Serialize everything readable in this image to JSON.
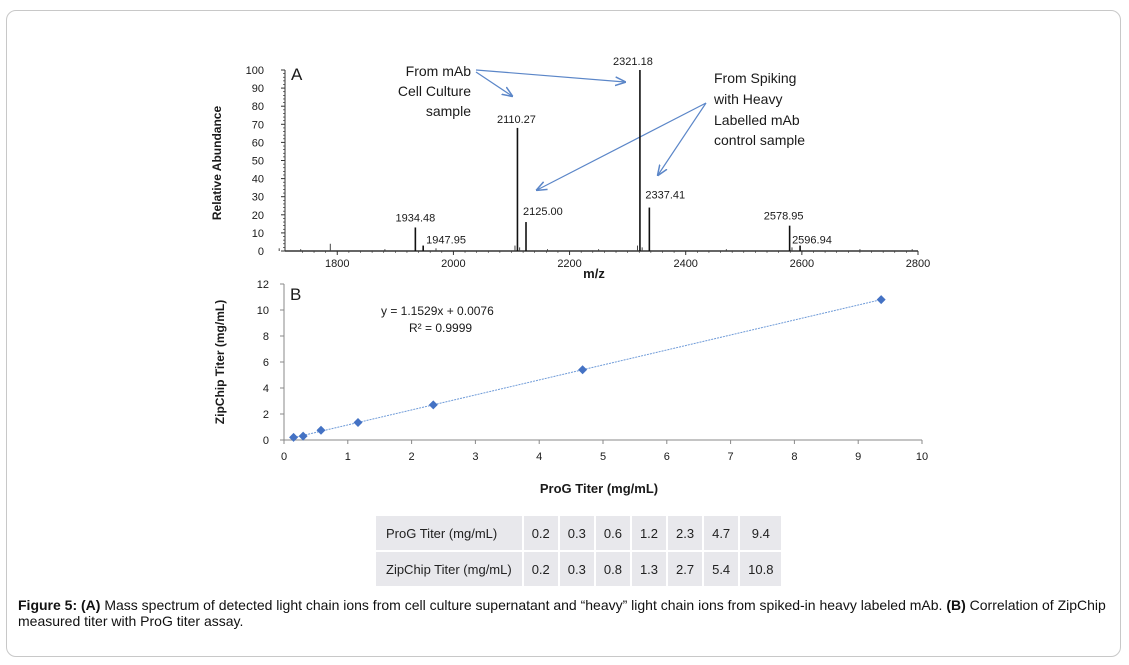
{
  "caption": {
    "label": "Figure 5:",
    "a_tag": "(A)",
    "a_text": "Mass spectrum of detected light chain ions from cell culture supernatant and “heavy” light chain ions from spiked-in heavy labeled mAb.",
    "b_tag": "(B)",
    "b_text": "Correlation of ZipChip measured titer with ProG titer assay."
  },
  "chart_data": [
    {
      "id": "A",
      "type": "mass-spectrum",
      "panel_label": "A",
      "xlabel": "m/z",
      "ylabel": "Relative Abundance",
      "xlim": [
        1700,
        2800
      ],
      "ylim": [
        0,
        100
      ],
      "xticks": [
        1800,
        2000,
        2200,
        2400,
        2600,
        2800
      ],
      "yticks": [
        0,
        10,
        20,
        30,
        40,
        50,
        60,
        70,
        80,
        90,
        100
      ],
      "peaks": [
        {
          "mz": 1934.48,
          "intensity": 13,
          "label": "1934.48"
        },
        {
          "mz": 1947.95,
          "intensity": 3,
          "label": "1947.95"
        },
        {
          "mz": 2110.27,
          "intensity": 68,
          "label": "2110.27"
        },
        {
          "mz": 2125.0,
          "intensity": 16,
          "label": "2125.00"
        },
        {
          "mz": 2321.18,
          "intensity": 100,
          "label": "2321.18"
        },
        {
          "mz": 2337.41,
          "intensity": 24,
          "label": "2337.41"
        },
        {
          "mz": 2578.95,
          "intensity": 14,
          "label": "2578.95"
        },
        {
          "mz": 2596.94,
          "intensity": 3,
          "label": "2596.94"
        }
      ],
      "minor_peaks": [
        {
          "mz": 1700,
          "intensity": 1.5
        },
        {
          "mz": 1737,
          "intensity": 1
        },
        {
          "mz": 1788,
          "intensity": 4
        },
        {
          "mz": 1882,
          "intensity": 1
        },
        {
          "mz": 1970,
          "intensity": 1.5
        },
        {
          "mz": 2106,
          "intensity": 3
        },
        {
          "mz": 2114,
          "intensity": 2
        },
        {
          "mz": 2162,
          "intensity": 1
        },
        {
          "mz": 2250,
          "intensity": 1
        },
        {
          "mz": 2317,
          "intensity": 3
        },
        {
          "mz": 2325,
          "intensity": 2
        },
        {
          "mz": 2470,
          "intensity": 1
        },
        {
          "mz": 2583,
          "intensity": 2
        },
        {
          "mz": 2700,
          "intensity": 1
        },
        {
          "mz": 2790,
          "intensity": 1
        }
      ],
      "annotations": [
        {
          "lines": [
            "From mAb",
            "Cell Culture",
            "sample"
          ],
          "align": "right"
        },
        {
          "lines": [
            "From Spiking",
            "with Heavy",
            "Labelled mAb",
            "control sample"
          ],
          "align": "left"
        }
      ]
    },
    {
      "id": "B",
      "type": "scatter",
      "panel_label": "B",
      "xlabel": "ProG Titer (mg/mL)",
      "ylabel": "ZipChip Titer (mg/mL)",
      "xlim": [
        0,
        10
      ],
      "ylim": [
        0,
        12
      ],
      "xticks": [
        0,
        1,
        2,
        3,
        4,
        5,
        6,
        7,
        8,
        9,
        10
      ],
      "yticks": [
        0,
        2,
        4,
        6,
        8,
        10,
        12
      ],
      "points": [
        {
          "x": 0.15,
          "y": 0.2
        },
        {
          "x": 0.3,
          "y": 0.3
        },
        {
          "x": 0.58,
          "y": 0.75
        },
        {
          "x": 1.16,
          "y": 1.35
        },
        {
          "x": 2.34,
          "y": 2.7
        },
        {
          "x": 4.68,
          "y": 5.4
        },
        {
          "x": 9.36,
          "y": 10.8
        }
      ],
      "trendline": {
        "slope": 1.1529,
        "intercept": 0.0076
      },
      "equation": "y = 1.1529x + 0.0076",
      "r2_label": "R² = 0.9999",
      "marker_color": "#4472c4",
      "line_color": "#6f9bd8"
    }
  ],
  "table": {
    "rows": [
      {
        "label": "ProG Titer (mg/mL)",
        "values": [
          "0.2",
          "0.3",
          "0.6",
          "1.2",
          "2.3",
          "4.7",
          "9.4"
        ]
      },
      {
        "label": "ZipChip Titer (mg/mL)",
        "values": [
          "0.2",
          "0.3",
          "0.8",
          "1.3",
          "2.7",
          "5.4",
          "10.8"
        ]
      }
    ]
  },
  "colors": {
    "arrow": "#5b86c8",
    "axis": "#333333",
    "grid": "#d9d9d9"
  }
}
